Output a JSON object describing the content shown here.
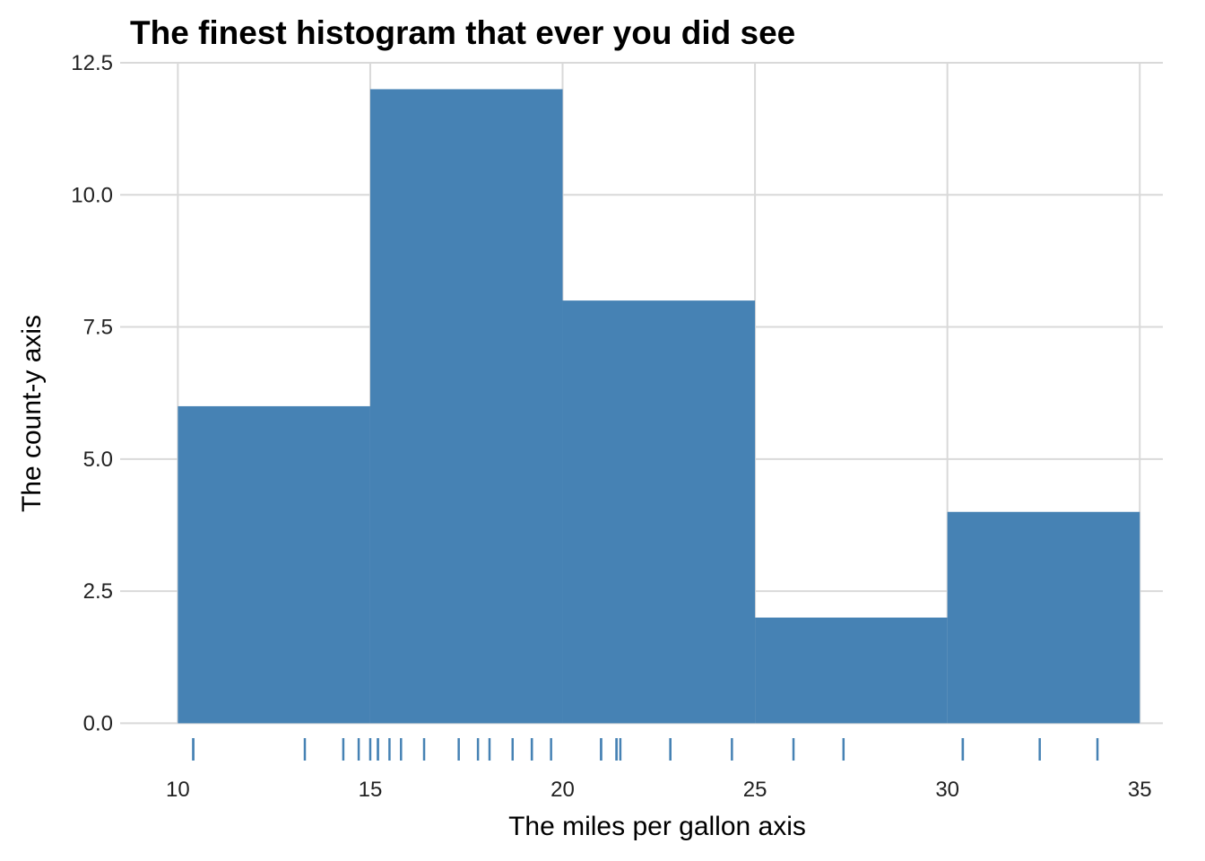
{
  "chart_data": {
    "type": "bar",
    "subtype": "histogram",
    "title": "The finest histogram that ever you did see",
    "xlabel": "The miles per gallon axis",
    "ylabel": "The count-y axis",
    "bins": [
      {
        "start": 10,
        "end": 15,
        "count": 6
      },
      {
        "start": 15,
        "end": 20,
        "count": 12
      },
      {
        "start": 20,
        "end": 25,
        "count": 8
      },
      {
        "start": 25,
        "end": 30,
        "count": 2
      },
      {
        "start": 30,
        "end": 35,
        "count": 4
      }
    ],
    "rug": [
      10.4,
      10.4,
      13.3,
      14.3,
      14.7,
      15.0,
      15.2,
      15.2,
      15.5,
      15.8,
      16.4,
      17.3,
      17.8,
      18.1,
      18.7,
      19.2,
      19.2,
      19.7,
      21.0,
      21.0,
      21.4,
      21.4,
      21.5,
      22.8,
      22.8,
      24.4,
      26.0,
      27.3,
      30.4,
      30.4,
      32.4,
      33.9
    ],
    "xlim": [
      8.5,
      35.6
    ],
    "ylim": [
      -0.74,
      12.5
    ],
    "x_ticks": [
      10,
      15,
      20,
      25,
      30,
      35
    ],
    "x_tick_labels": [
      "10",
      "15",
      "20",
      "25",
      "30",
      "35"
    ],
    "y_ticks": [
      0,
      2.5,
      5,
      7.5,
      10,
      12.5
    ],
    "y_tick_labels": [
      "0.0",
      "2.5",
      "5.0",
      "7.5",
      "10.0",
      "12.5"
    ],
    "grid": true,
    "legend": "none",
    "colors": {
      "fill": "#4682B4",
      "rug": "#4682B4",
      "grid": "#d9d9d9"
    }
  }
}
